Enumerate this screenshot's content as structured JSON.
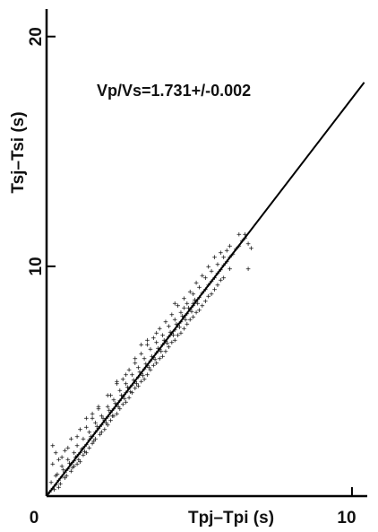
{
  "chart_data": {
    "type": "scatter",
    "title": "",
    "xlabel": "Tpj–Tpi (s)",
    "ylabel": "Tsj–Tsi (s)",
    "xlim": [
      0,
      10.5
    ],
    "ylim": [
      0,
      21.2
    ],
    "xticks": [
      0,
      10
    ],
    "yticks": [
      10,
      20
    ],
    "x_tick_labels": [
      "0",
      "10"
    ],
    "y_tick_labels": [
      "10",
      "20"
    ],
    "grid": false,
    "legend": "none",
    "annotation": "Vp/Vs=1.731+/-0.002",
    "marker": "+",
    "fit_line": {
      "slope": 1.731,
      "intercept": 0,
      "x_range": [
        0,
        10.4
      ]
    },
    "series": [
      {
        "points": [
          [
            0.1,
            0.2
          ],
          [
            0.2,
            0.35
          ],
          [
            0.3,
            0.5
          ],
          [
            0.4,
            0.7
          ],
          [
            0.5,
            0.85
          ],
          [
            0.6,
            1.05
          ],
          [
            0.7,
            1.2
          ],
          [
            0.8,
            1.4
          ],
          [
            0.9,
            1.55
          ],
          [
            1.0,
            1.75
          ],
          [
            1.1,
            1.9
          ],
          [
            1.2,
            2.1
          ],
          [
            1.3,
            2.25
          ],
          [
            1.4,
            2.45
          ],
          [
            1.5,
            2.6
          ],
          [
            1.6,
            2.8
          ],
          [
            1.7,
            2.95
          ],
          [
            1.8,
            3.1
          ],
          [
            1.9,
            3.3
          ],
          [
            2.0,
            3.45
          ],
          [
            2.1,
            3.65
          ],
          [
            2.2,
            3.8
          ],
          [
            2.3,
            4.0
          ],
          [
            2.4,
            4.15
          ],
          [
            2.5,
            4.35
          ],
          [
            2.6,
            4.5
          ],
          [
            2.7,
            4.7
          ],
          [
            2.8,
            4.85
          ],
          [
            2.9,
            5.0
          ],
          [
            3.0,
            5.2
          ],
          [
            3.1,
            5.35
          ],
          [
            3.2,
            5.55
          ],
          [
            3.3,
            5.7
          ],
          [
            3.4,
            5.9
          ],
          [
            3.5,
            6.05
          ],
          [
            3.6,
            6.25
          ],
          [
            3.7,
            6.4
          ],
          [
            3.8,
            6.6
          ],
          [
            3.9,
            6.75
          ],
          [
            4.0,
            6.95
          ],
          [
            4.1,
            7.1
          ],
          [
            4.2,
            7.25
          ],
          [
            4.3,
            7.45
          ],
          [
            4.4,
            7.6
          ],
          [
            4.5,
            7.8
          ],
          [
            4.6,
            7.95
          ],
          [
            4.7,
            8.15
          ],
          [
            4.8,
            8.3
          ],
          [
            4.9,
            8.5
          ],
          [
            5.0,
            8.65
          ],
          [
            5.1,
            8.85
          ],
          [
            5.2,
            9.0
          ],
          [
            5.3,
            9.2
          ],
          [
            5.4,
            9.35
          ],
          [
            5.5,
            9.5
          ],
          [
            5.6,
            9.7
          ],
          [
            5.7,
            9.85
          ],
          [
            5.8,
            10.05
          ],
          [
            5.9,
            10.2
          ],
          [
            6.0,
            10.4
          ],
          [
            6.1,
            10.55
          ],
          [
            6.2,
            10.75
          ],
          [
            6.3,
            10.9
          ],
          [
            6.4,
            11.1
          ],
          [
            6.5,
            11.25
          ],
          [
            0.3,
            0.9
          ],
          [
            0.5,
            1.3
          ],
          [
            0.7,
            1.6
          ],
          [
            0.9,
            1.9
          ],
          [
            1.0,
            2.2
          ],
          [
            1.2,
            2.5
          ],
          [
            1.4,
            2.8
          ],
          [
            1.6,
            3.2
          ],
          [
            1.8,
            3.5
          ],
          [
            2.0,
            3.9
          ],
          [
            2.2,
            4.2
          ],
          [
            2.4,
            4.6
          ],
          [
            2.6,
            4.9
          ],
          [
            2.8,
            5.3
          ],
          [
            3.0,
            5.6
          ],
          [
            3.2,
            6.0
          ],
          [
            3.4,
            6.4
          ],
          [
            3.6,
            6.7
          ],
          [
            3.8,
            7.0
          ],
          [
            4.0,
            7.4
          ],
          [
            4.2,
            7.7
          ],
          [
            4.4,
            8.0
          ],
          [
            4.6,
            8.4
          ],
          [
            4.8,
            8.8
          ],
          [
            5.0,
            9.1
          ],
          [
            5.2,
            9.5
          ],
          [
            5.4,
            9.8
          ],
          [
            5.6,
            10.1
          ],
          [
            0.4,
            0.4
          ],
          [
            0.6,
            0.8
          ],
          [
            0.8,
            1.1
          ],
          [
            1.0,
            1.4
          ],
          [
            1.2,
            1.8
          ],
          [
            1.4,
            2.1
          ],
          [
            1.6,
            2.5
          ],
          [
            1.8,
            2.8
          ],
          [
            2.0,
            3.1
          ],
          [
            2.2,
            3.5
          ],
          [
            2.4,
            3.8
          ],
          [
            2.6,
            4.1
          ],
          [
            2.8,
            4.5
          ],
          [
            3.0,
            4.8
          ],
          [
            3.2,
            5.1
          ],
          [
            3.4,
            5.5
          ],
          [
            3.6,
            5.8
          ],
          [
            3.8,
            6.1
          ],
          [
            4.0,
            6.5
          ],
          [
            4.2,
            6.8
          ],
          [
            4.4,
            7.1
          ],
          [
            4.6,
            7.5
          ],
          [
            4.8,
            7.8
          ],
          [
            5.0,
            8.1
          ],
          [
            5.2,
            8.5
          ],
          [
            5.4,
            8.8
          ],
          [
            5.6,
            9.2
          ],
          [
            5.8,
            9.5
          ],
          [
            6.0,
            9.9
          ],
          [
            0.2,
            1.4
          ],
          [
            0.3,
            1.9
          ],
          [
            0.4,
            1.6
          ],
          [
            0.2,
            2.2
          ],
          [
            0.6,
            2.0
          ],
          [
            0.8,
            2.5
          ],
          [
            1.1,
            2.9
          ],
          [
            1.3,
            3.4
          ],
          [
            1.5,
            3.6
          ],
          [
            1.7,
            3.9
          ],
          [
            2.1,
            4.4
          ],
          [
            2.3,
            4.9
          ],
          [
            2.5,
            5.1
          ],
          [
            2.7,
            5.5
          ],
          [
            2.9,
            5.8
          ],
          [
            3.1,
            6.2
          ],
          [
            3.3,
            6.6
          ],
          [
            3.5,
            6.9
          ],
          [
            3.7,
            7.3
          ],
          [
            3.9,
            7.6
          ],
          [
            4.1,
            7.9
          ],
          [
            4.3,
            8.3
          ],
          [
            4.5,
            8.6
          ],
          [
            4.7,
            8.9
          ],
          [
            4.9,
            9.3
          ],
          [
            5.1,
            9.6
          ],
          [
            5.3,
            10.0
          ],
          [
            5.5,
            10.4
          ],
          [
            5.7,
            10.6
          ],
          [
            6.3,
            11.4
          ],
          [
            6.5,
            11.4
          ],
          [
            6.6,
            11.0
          ],
          [
            6.7,
            10.8
          ],
          [
            6.6,
            9.9
          ],
          [
            6.0,
            10.9
          ],
          [
            5.9,
            10.7
          ],
          [
            5.8,
            10.4
          ],
          [
            4.2,
            8.4
          ],
          [
            3.6,
            7.1
          ],
          [
            3.3,
            6.8
          ],
          [
            3.1,
            6.6
          ],
          [
            4.5,
            8.2
          ],
          [
            4.8,
            8.4
          ],
          [
            2.9,
            6.0
          ],
          [
            2.6,
            5.3
          ],
          [
            2.3,
            5.0
          ],
          [
            2.0,
            4.4
          ],
          [
            1.7,
            3.8
          ],
          [
            1.5,
            3.4
          ],
          [
            1.3,
            3.0
          ],
          [
            1.0,
            2.6
          ],
          [
            0.7,
            2.1
          ],
          [
            0.5,
            1.7
          ],
          [
            0.9,
            1.3
          ],
          [
            1.1,
            1.5
          ],
          [
            1.3,
            1.9
          ],
          [
            1.5,
            2.3
          ],
          [
            1.9,
            2.9
          ],
          [
            2.1,
            3.3
          ],
          [
            2.3,
            3.6
          ],
          [
            2.5,
            4.0
          ],
          [
            2.7,
            4.3
          ],
          [
            2.9,
            4.7
          ],
          [
            3.1,
            5.0
          ],
          [
            3.3,
            5.3
          ],
          [
            3.5,
            5.7
          ],
          [
            3.7,
            6.0
          ],
          [
            3.9,
            6.3
          ],
          [
            4.1,
            6.7
          ],
          [
            4.3,
            7.0
          ],
          [
            4.5,
            7.3
          ],
          [
            4.7,
            7.7
          ],
          [
            4.9,
            8.0
          ],
          [
            5.1,
            8.3
          ],
          [
            5.3,
            8.7
          ],
          [
            5.5,
            9.0
          ],
          [
            5.7,
            9.4
          ],
          [
            0.15,
            0.6
          ],
          [
            0.25,
            0.3
          ],
          [
            0.35,
            0.95
          ],
          [
            0.45,
            0.55
          ],
          [
            0.55,
            1.15
          ],
          [
            0.65,
            0.9
          ],
          [
            0.75,
            1.45
          ],
          [
            0.85,
            1.25
          ],
          [
            0.95,
            1.7
          ],
          [
            1.05,
            1.6
          ],
          [
            1.15,
            2.05
          ],
          [
            1.25,
            1.95
          ],
          [
            1.45,
            2.6
          ],
          [
            1.55,
            2.4
          ],
          [
            1.65,
            3.05
          ],
          [
            1.75,
            2.7
          ],
          [
            1.85,
            3.4
          ],
          [
            1.95,
            3.2
          ],
          [
            2.05,
            3.75
          ],
          [
            2.15,
            3.5
          ],
          [
            2.25,
            4.05
          ],
          [
            2.35,
            3.9
          ],
          [
            2.45,
            4.4
          ],
          [
            2.55,
            4.25
          ],
          [
            2.65,
            4.75
          ],
          [
            2.75,
            4.55
          ],
          [
            2.85,
            5.05
          ],
          [
            2.95,
            4.9
          ],
          [
            3.05,
            5.4
          ],
          [
            3.15,
            5.25
          ],
          [
            3.25,
            5.75
          ],
          [
            3.35,
            5.6
          ],
          [
            3.45,
            6.1
          ],
          [
            3.55,
            5.95
          ],
          [
            3.65,
            6.45
          ],
          [
            3.75,
            6.3
          ],
          [
            3.85,
            6.8
          ],
          [
            3.95,
            6.65
          ],
          [
            4.05,
            7.15
          ],
          [
            4.15,
            7.0
          ],
          [
            4.25,
            7.5
          ],
          [
            4.35,
            7.35
          ],
          [
            4.45,
            7.85
          ],
          [
            4.55,
            7.7
          ],
          [
            4.65,
            8.2
          ],
          [
            4.75,
            8.05
          ],
          [
            4.85,
            8.55
          ],
          [
            4.95,
            8.4
          ]
        ]
      }
    ]
  }
}
